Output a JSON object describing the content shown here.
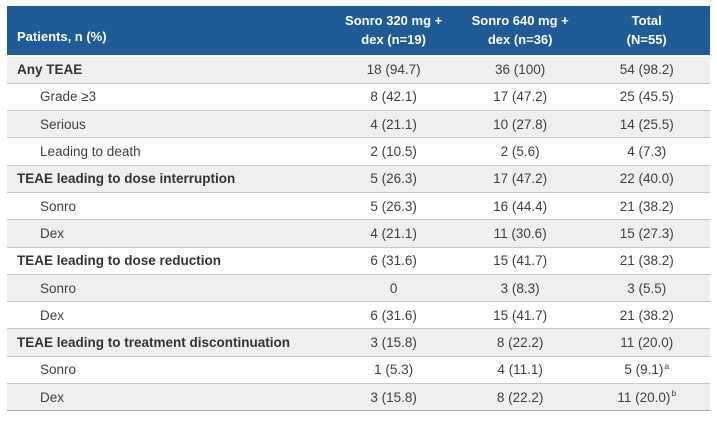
{
  "colors": {
    "header_bg": "#1e5b97",
    "header_text": "#ffffff",
    "row_shaded_bg": "#efefef",
    "row_plain_bg": "#ffffff",
    "row_border": "#c6c6c6",
    "bottom_border": "#a6a6a6",
    "body_text": "#3f3f3f"
  },
  "table": {
    "columns": [
      "Patients, n (%)",
      "Sonro 320 mg +\ndex (n=19)",
      "Sonro 640 mg +\ndex (n=36)",
      "Total\n(N=55)"
    ],
    "rows": [
      {
        "label": "Any TEAE",
        "bold": true,
        "indent": false,
        "values": [
          "18 (94.7)",
          "36 (100)",
          "54 (98.2)"
        ],
        "sup": ""
      },
      {
        "label": "Grade ≥3",
        "bold": false,
        "indent": true,
        "values": [
          "8 (42.1)",
          "17 (47.2)",
          "25 (45.5)"
        ],
        "sup": ""
      },
      {
        "label": "Serious",
        "bold": false,
        "indent": true,
        "values": [
          "4 (21.1)",
          "10 (27.8)",
          "14 (25.5)"
        ],
        "sup": ""
      },
      {
        "label": "Leading to death",
        "bold": false,
        "indent": true,
        "values": [
          "2 (10.5)",
          "2 (5.6)",
          "4 (7.3)"
        ],
        "sup": ""
      },
      {
        "label": "TEAE leading to dose interruption",
        "bold": true,
        "indent": false,
        "values": [
          "5 (26.3)",
          "17 (47.2)",
          "22 (40.0)"
        ],
        "sup": ""
      },
      {
        "label": "Sonro",
        "bold": false,
        "indent": true,
        "values": [
          "5 (26.3)",
          "16 (44.4)",
          "21 (38.2)"
        ],
        "sup": ""
      },
      {
        "label": "Dex",
        "bold": false,
        "indent": true,
        "values": [
          "4 (21.1)",
          "11 (30.6)",
          "15 (27.3)"
        ],
        "sup": ""
      },
      {
        "label": "TEAE leading to dose reduction",
        "bold": true,
        "indent": false,
        "values": [
          "6 (31.6)",
          "15 (41.7)",
          "21 (38.2)"
        ],
        "sup": ""
      },
      {
        "label": "Sonro",
        "bold": false,
        "indent": true,
        "values": [
          "0",
          "3 (8.3)",
          "3 (5.5)"
        ],
        "sup": ""
      },
      {
        "label": "Dex",
        "bold": false,
        "indent": true,
        "values": [
          "6 (31.6)",
          "15 (41.7)",
          "21 (38.2)"
        ],
        "sup": ""
      },
      {
        "label": "TEAE leading to treatment discontinuation",
        "bold": true,
        "indent": false,
        "values": [
          "3 (15.8)",
          "8 (22.2)",
          "11 (20.0)"
        ],
        "sup": ""
      },
      {
        "label": "Sonro",
        "bold": false,
        "indent": true,
        "values": [
          "1 (5.3)",
          "4 (11.1)",
          "5 (9.1)"
        ],
        "sup": "a"
      },
      {
        "label": "Dex",
        "bold": false,
        "indent": true,
        "values": [
          "3 (15.8)",
          "8 (22.2)",
          "11 (20.0)"
        ],
        "sup": "b"
      }
    ]
  }
}
